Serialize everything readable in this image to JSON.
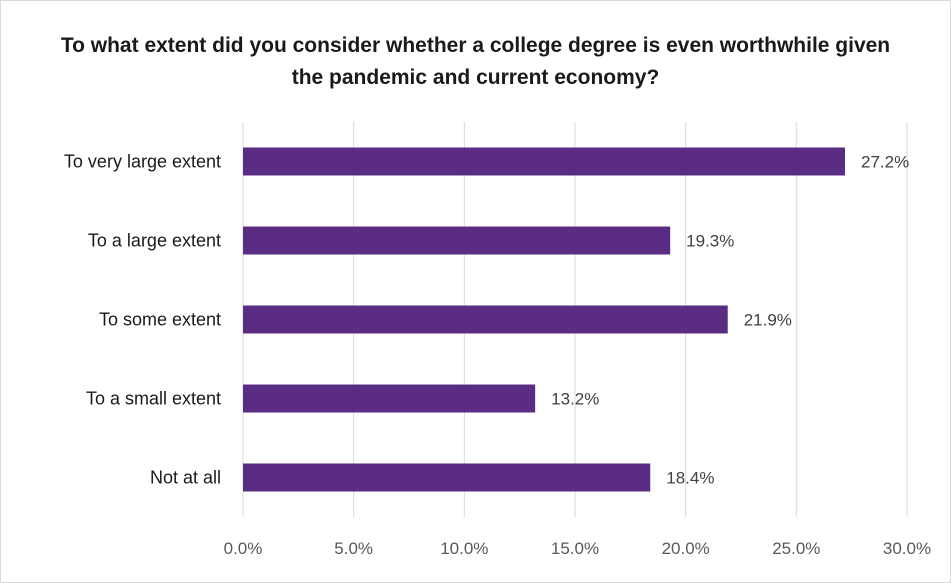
{
  "chart_data": {
    "type": "bar",
    "orientation": "horizontal",
    "title": "To what extent did you consider whether a college degree is even worthwhile given the pandemic and current economy?",
    "categories": [
      "To very large extent",
      "To a large extent",
      "To some extent",
      "To a small extent",
      "Not at all"
    ],
    "values": [
      27.2,
      19.3,
      21.9,
      13.2,
      18.4
    ],
    "data_labels": [
      "27.2%",
      "19.3%",
      "21.9%",
      "13.2%",
      "18.4%"
    ],
    "xlim": [
      0,
      30
    ],
    "xticks": [
      0,
      5,
      10,
      15,
      20,
      25,
      30
    ],
    "xtick_labels": [
      "0.0%",
      "5.0%",
      "10.0%",
      "15.0%",
      "20.0%",
      "25.0%",
      "30.0%"
    ],
    "xlabel": "",
    "ylabel": "",
    "grid": "vertical",
    "legend": "none",
    "colors": {
      "bar": "#5b2c83",
      "grid": "#d9d9d9",
      "border": "#d9d9d9"
    }
  }
}
